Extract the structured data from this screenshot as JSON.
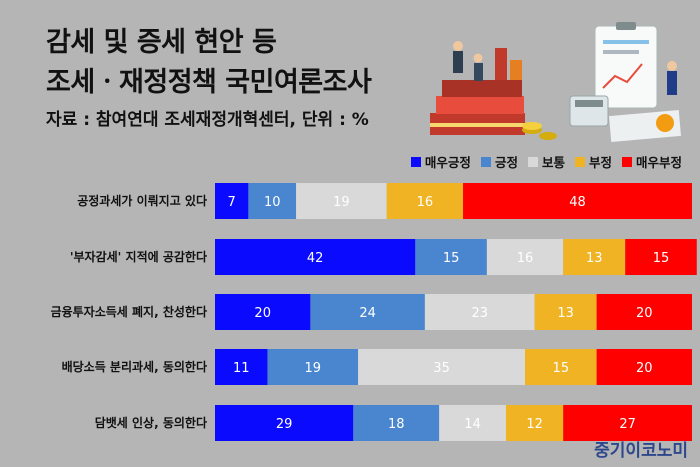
{
  "header": {
    "title_line1": "감세 및 증세 현안 등",
    "title_line2": "조세ㆍ재정정책 국민여론조사",
    "source": "자료 : 참여연대 조세재정개혁센터, 단위 : %"
  },
  "watermark": "중기이코노미",
  "colors": {
    "very_positive": "#0a0aff",
    "positive": "#4a86cf",
    "neutral": "#d9d9d9",
    "negative": "#f0b323",
    "very_negative": "#ff0000",
    "background": "#b5b5b5"
  },
  "chart_data": {
    "type": "bar",
    "orientation": "horizontal",
    "stacked": true,
    "categories": [
      "공정과세가 이뤄지고 있다",
      "'부자감세' 지적에 공감한다",
      "금융투자소득세 폐지, 찬성한다",
      "배당소득 분리과세, 동의한다",
      "담뱃세 인상, 동의한다"
    ],
    "series": [
      {
        "name": "매우긍정",
        "color": "#0a0aff",
        "values": [
          7,
          42,
          20,
          11,
          29
        ]
      },
      {
        "name": "긍정",
        "color": "#4a86cf",
        "values": [
          10,
          15,
          24,
          19,
          18
        ]
      },
      {
        "name": "보통",
        "color": "#d9d9d9",
        "values": [
          19,
          16,
          23,
          35,
          14
        ]
      },
      {
        "name": "부정",
        "color": "#f0b323",
        "values": [
          16,
          13,
          13,
          15,
          12
        ]
      },
      {
        "name": "매우부정",
        "color": "#ff0000",
        "values": [
          48,
          15,
          20,
          20,
          27
        ]
      }
    ],
    "xlim": [
      0,
      100
    ],
    "legend_position": "top-right"
  }
}
